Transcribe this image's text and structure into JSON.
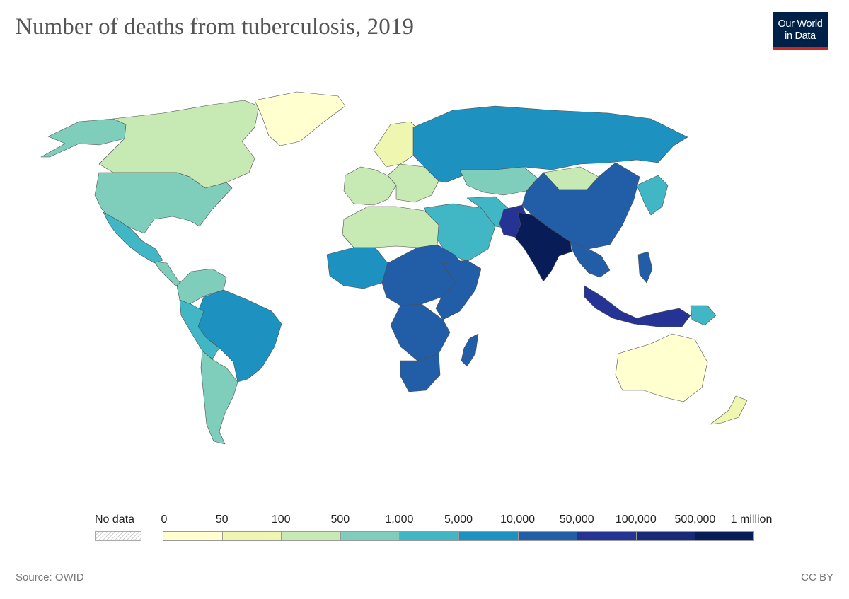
{
  "title": "Number of deaths from tuberculosis, 2019",
  "logo": {
    "line1": "Our World",
    "line2": "in Data"
  },
  "legend": {
    "no_data_label": "No data",
    "bins": [
      {
        "label": "0",
        "color": "#ffffd0"
      },
      {
        "label": "50",
        "color": "#eef6b0"
      },
      {
        "label": "100",
        "color": "#c7e9b4"
      },
      {
        "label": "500",
        "color": "#7fcdbb"
      },
      {
        "label": "1,000",
        "color": "#41b6c4"
      },
      {
        "label": "5,000",
        "color": "#1d91c0"
      },
      {
        "label": "10,000",
        "color": "#225ea8"
      },
      {
        "label": "50,000",
        "color": "#253494"
      },
      {
        "label": "100,000",
        "color": "#162a75"
      },
      {
        "label": "500,000",
        "color": "#081d58"
      },
      {
        "label": "1 million",
        "color": null
      }
    ]
  },
  "source": "Source: OWID",
  "license": "CC BY",
  "colors": {
    "ocean": "#ffffff",
    "border": "#4d4d4d"
  },
  "map_regions": [
    {
      "name": "usa",
      "color": "#7fcdbb"
    },
    {
      "name": "canada",
      "color": "#c7e9b4"
    },
    {
      "name": "alaska",
      "color": "#7fcdbb"
    },
    {
      "name": "greenland",
      "color": "#ffffd0"
    },
    {
      "name": "mexico",
      "color": "#41b6c4"
    },
    {
      "name": "brazil",
      "color": "#1d91c0"
    },
    {
      "name": "russia",
      "color": "#1d91c0"
    },
    {
      "name": "china",
      "color": "#225ea8"
    },
    {
      "name": "india",
      "color": "#081d58"
    },
    {
      "name": "indonesia",
      "color": "#253494"
    },
    {
      "name": "australia",
      "color": "#ffffd0"
    },
    {
      "name": "nigeria",
      "color": "#225ea8"
    },
    {
      "name": "south-africa",
      "color": "#225ea8"
    },
    {
      "name": "pakistan",
      "color": "#253494"
    }
  ]
}
